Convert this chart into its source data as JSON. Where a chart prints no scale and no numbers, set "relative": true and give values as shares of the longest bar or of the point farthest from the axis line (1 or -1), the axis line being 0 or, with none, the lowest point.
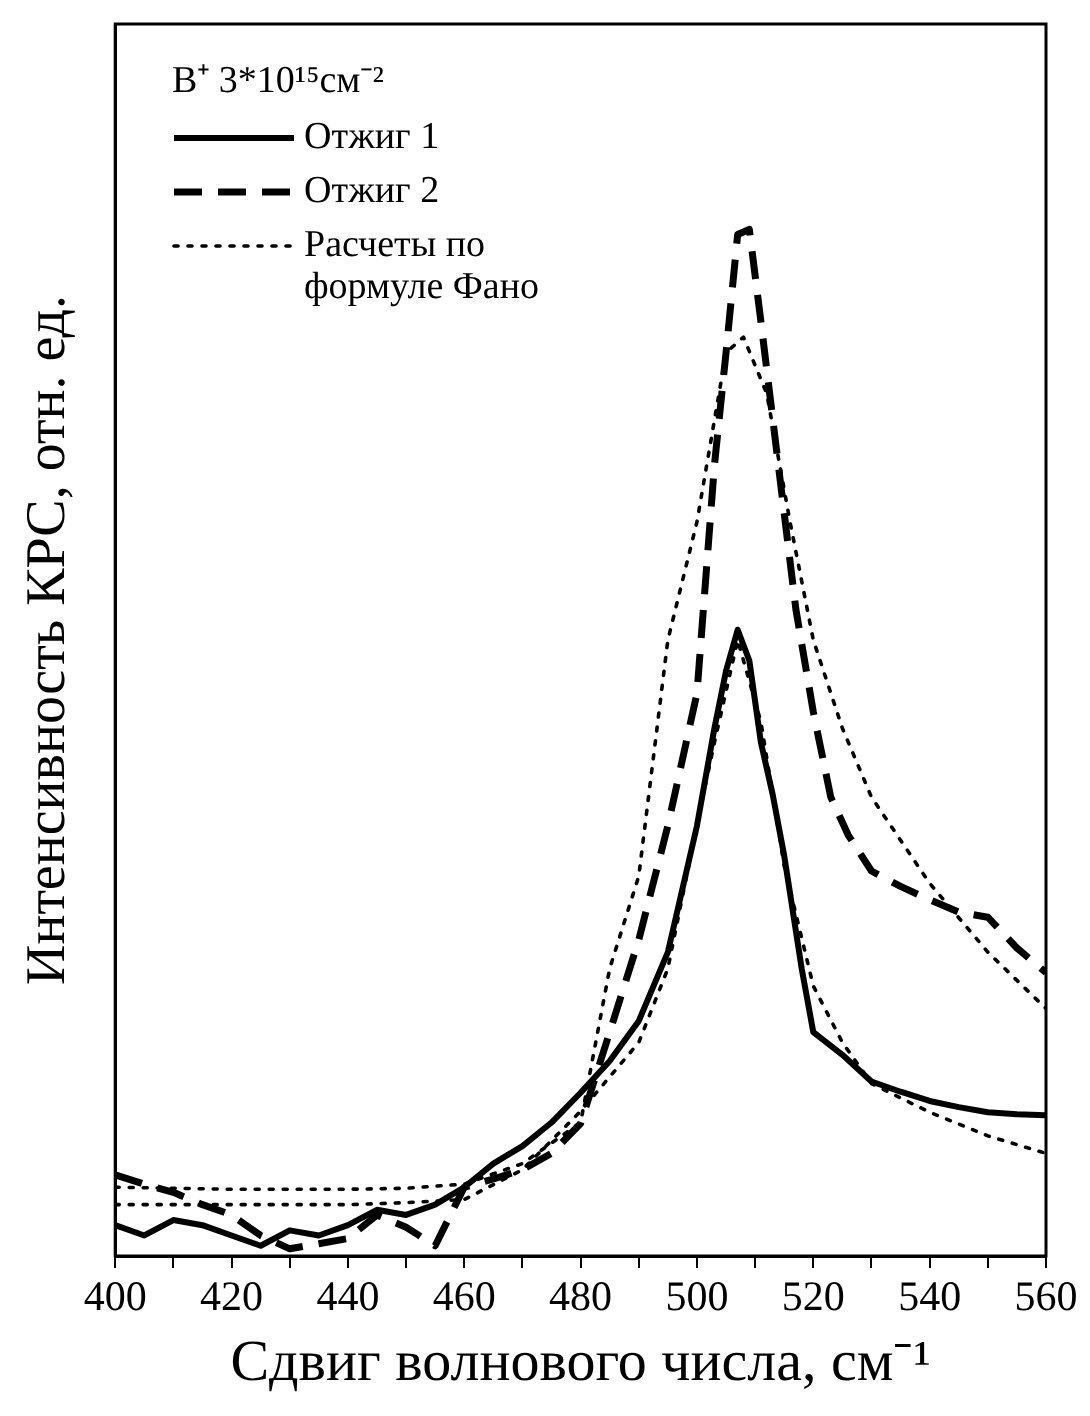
{
  "chart_data": {
    "type": "line",
    "relative": true,
    "xlabel": "Сдвиг волнового числа, см⁻¹",
    "ylabel": "Интенсивность КРС, отн. ед.",
    "legend_title": "B⁺ 3*10¹⁵см⁻²",
    "legend": "top left",
    "grid": false,
    "marker": "none",
    "xlim": [
      400,
      560
    ],
    "xticks": [
      400,
      {
        "value": 410,
        "label": null
      },
      420,
      {
        "value": 430,
        "label": null
      },
      440,
      {
        "value": 450,
        "label": null
      },
      460,
      {
        "value": 470,
        "label": null
      },
      480,
      {
        "value": 490,
        "label": null
      },
      500,
      {
        "value": 510,
        "label": null
      },
      520,
      {
        "value": 530,
        "label": null
      },
      540,
      {
        "value": 550,
        "label": null
      },
      560
    ],
    "series": [
      {
        "name": "Отжиг 1",
        "color": "#000000",
        "line_style": "solid",
        "x": [
          400,
          405,
          410,
          415,
          420,
          425,
          430,
          435,
          440,
          445,
          450,
          455,
          460,
          465,
          470,
          475,
          480,
          485,
          490,
          495,
          500,
          503,
          505,
          507,
          509,
          511,
          513,
          515,
          518,
          520,
          525,
          530,
          535,
          540,
          545,
          550,
          555,
          560
        ],
        "values": [
          0.03,
          0.02,
          0.035,
          0.03,
          0.02,
          0.01,
          0.025,
          0.02,
          0.03,
          0.045,
          0.04,
          0.05,
          0.067,
          0.09,
          0.107,
          0.13,
          0.159,
          0.19,
          0.229,
          0.296,
          0.419,
          0.514,
          0.57,
          0.61,
          0.58,
          0.5,
          0.45,
          0.39,
          0.28,
          0.218,
          0.196,
          0.17,
          0.16,
          0.151,
          0.145,
          0.14,
          0.138,
          0.137
        ]
      },
      {
        "name": "Отжиг 2",
        "color": "#000000",
        "line_style": "dashed",
        "x": [
          400,
          405,
          410,
          415,
          420,
          425,
          430,
          435,
          440,
          445,
          450,
          455,
          460,
          465,
          470,
          475,
          480,
          485,
          490,
          495,
          500,
          503,
          505,
          507,
          509,
          511,
          514,
          517,
          520,
          523,
          526,
          530,
          535,
          540,
          545,
          550,
          555,
          560
        ],
        "values": [
          0.079,
          0.07,
          0.062,
          0.05,
          0.04,
          0.02,
          0.007,
          0.012,
          0.017,
          0.04,
          0.028,
          0.01,
          0.067,
          0.075,
          0.084,
          0.1,
          0.129,
          0.218,
          0.308,
          0.419,
          0.548,
          0.77,
          0.88,
          0.995,
          1,
          0.91,
          0.77,
          0.63,
          0.53,
          0.447,
          0.41,
          0.375,
          0.36,
          0.347,
          0.335,
          0.33,
          0.3,
          0.276
        ]
      },
      {
        "name": "Расчеты по формуле Фано",
        "color": "#000000",
        "line_style": "dotted",
        "x": [
          400,
          420,
          440,
          450,
          460,
          470,
          480,
          490,
          495,
          500,
          503,
          507,
          511,
          515,
          520,
          525,
          530,
          540,
          550,
          560
        ],
        "values": [
          0.05,
          0.05,
          0.05,
          0.052,
          0.055,
          0.084,
          0.141,
          0.208,
          0.28,
          0.42,
          0.5,
          0.6,
          0.52,
          0.38,
          0.263,
          0.208,
          0.168,
          0.14,
          0.117,
          0.1
        ]
      },
      {
        "color": "#000000",
        "line_style": "dotted",
        "x": [
          400,
          420,
          440,
          450,
          460,
          470,
          480,
          485,
          490,
          495,
          500,
          505,
          508,
          512,
          516,
          520,
          525,
          530,
          540,
          550,
          560
        ],
        "values": [
          0.067,
          0.065,
          0.065,
          0.066,
          0.07,
          0.09,
          0.13,
          0.28,
          0.37,
          0.6,
          0.715,
          0.88,
          0.895,
          0.84,
          0.715,
          0.6,
          0.514,
          0.447,
          0.363,
          0.296,
          0.241
        ]
      }
    ]
  }
}
